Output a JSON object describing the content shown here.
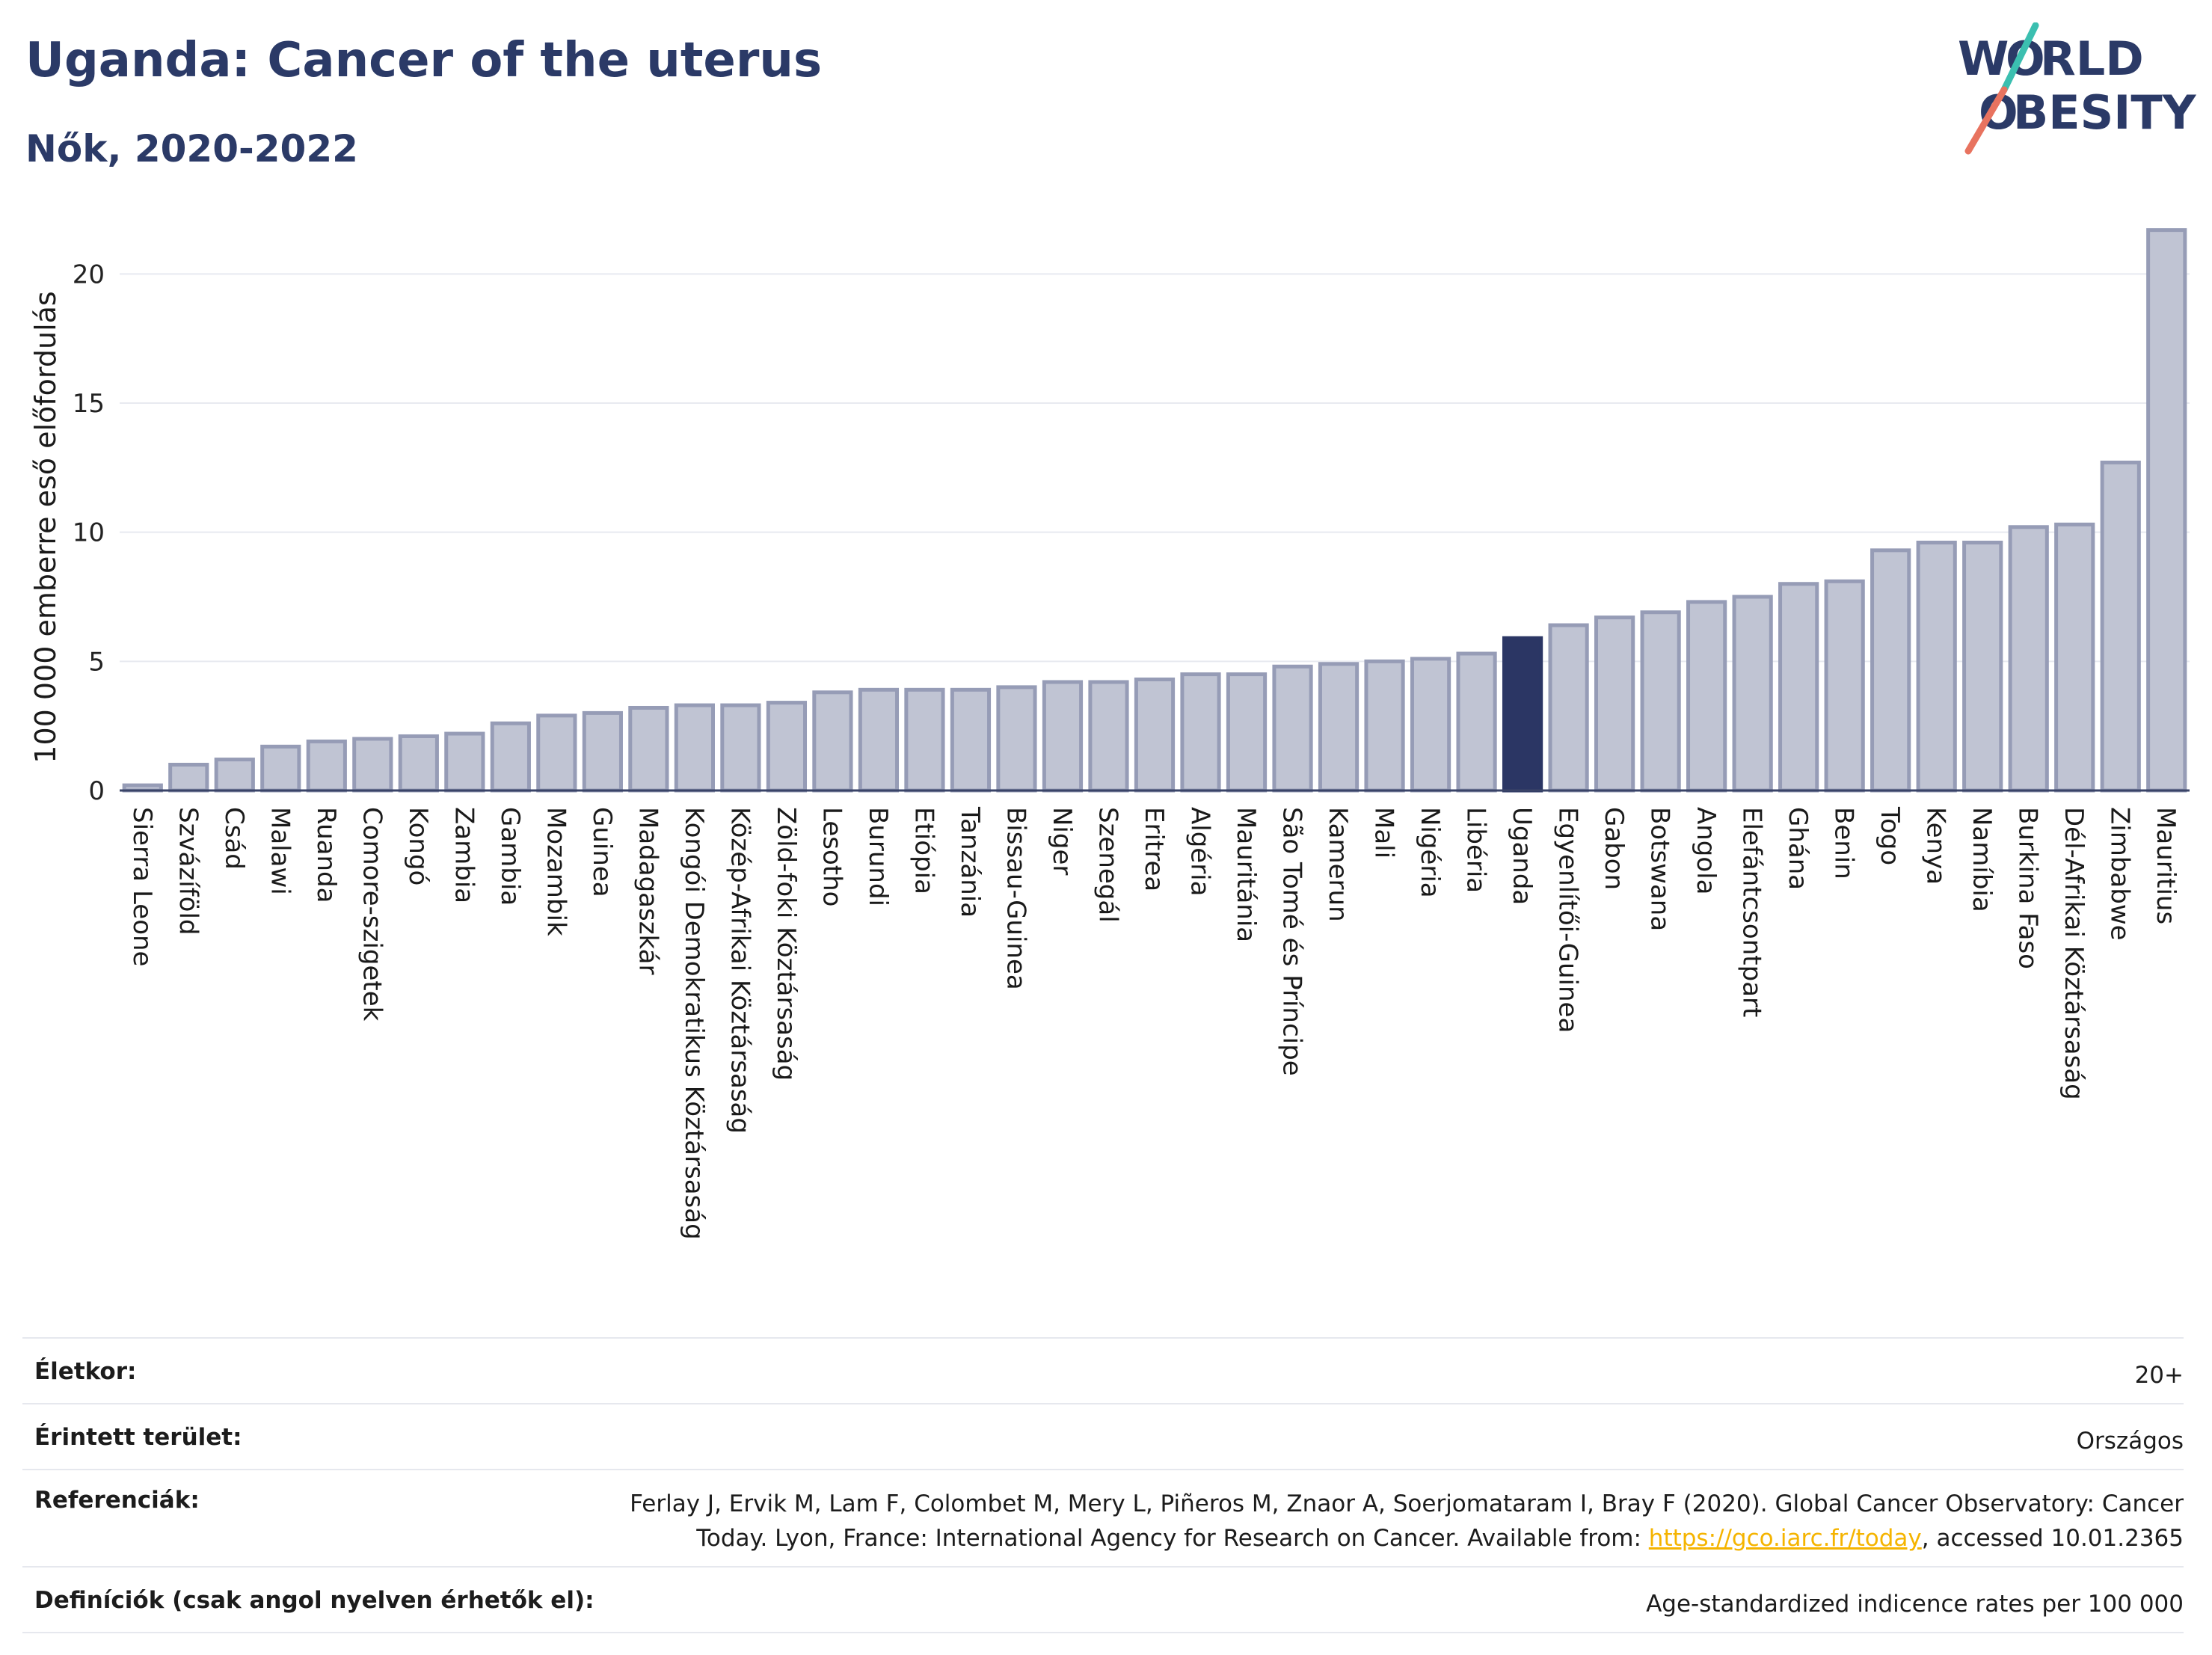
{
  "header": {
    "title": "Uganda: Cancer of the uterus",
    "subtitle": "Nők, 2020-2022",
    "logo_text": "WORLD OBESITY"
  },
  "colors": {
    "bar_fill": "#c0c4d3",
    "bar_stroke": "#969cb6",
    "highlight": "#2b3664",
    "title": "#2b3a67",
    "grid": "#e8eaf0",
    "link": "#f5b400",
    "logo_teal": "#3bbfb0",
    "logo_coral": "#e8735f"
  },
  "chart_data": {
    "type": "bar",
    "title": "Uganda: Cancer of the uterus",
    "subtitle": "Nők, 2020-2022",
    "xlabel": "",
    "ylabel": "100 000 emberre eső előfordulás",
    "ylim": [
      0,
      22.5
    ],
    "yticks": [
      0,
      5,
      10,
      15,
      20
    ],
    "grid": true,
    "highlight": "Uganda",
    "categories": [
      "Sierra Leone",
      "Szvázíföld",
      "Csád",
      "Malawi",
      "Ruanda",
      "Comore-szigetek",
      "Kongó",
      "Zambia",
      "Gambia",
      "Mozambik",
      "Guinea",
      "Madagaszkár",
      "Kongói Demokratikus Köztársaság",
      "Közép-Afrikai Köztársaság",
      "Zöld-foki Köztársaság",
      "Lesotho",
      "Burundi",
      "Etiópia",
      "Tanzánia",
      "Bissau-Guinea",
      "Niger",
      "Szenegál",
      "Eritrea",
      "Algéria",
      "Mauritánia",
      "São Tomé és Príncipe",
      "Kamerun",
      "Mali",
      "Nigéria",
      "Libéria",
      "Uganda",
      "Egyenlítői-Guinea",
      "Gabon",
      "Botswana",
      "Angola",
      "Elefántcsontpart",
      "Ghána",
      "Benin",
      "Togo",
      "Kenya",
      "Namíbia",
      "Burkina Faso",
      "Dél-Afrikai Köztársaság",
      "Zimbabwe",
      "Mauritius"
    ],
    "values": [
      0.2,
      1.0,
      1.2,
      1.7,
      1.9,
      2.0,
      2.1,
      2.2,
      2.6,
      2.9,
      3.0,
      3.2,
      3.3,
      3.3,
      3.4,
      3.8,
      3.9,
      3.9,
      3.9,
      4.0,
      4.2,
      4.2,
      4.3,
      4.5,
      4.5,
      4.8,
      4.9,
      5.0,
      5.1,
      5.3,
      5.9,
      6.4,
      6.7,
      6.9,
      7.3,
      7.5,
      8.0,
      8.1,
      9.3,
      9.6,
      9.6,
      10.2,
      10.3,
      12.7,
      21.7
    ]
  },
  "meta": {
    "age_label": "Életkor:",
    "age_value": "20+",
    "area_label": "Érintett terület:",
    "area_value": "Országos",
    "ref_label": "Referenciák:",
    "ref_line1": "Ferlay J, Ervik M, Lam F, Colombet M, Mery L, Piñeros M, Znaor A, Soerjomataram I, Bray F (2020). Global Cancer Observatory: Cancer",
    "ref_line2_before": "Today. Lyon, France: International Agency for Research on Cancer. Available from: ",
    "ref_link": "https://gco.iarc.fr/today",
    "ref_line2_after": ", accessed 10.01.2365",
    "def_label": "Definíciók (csak angol nyelven érhetők el):",
    "def_value": "Age-standardized indicence rates per 100 000"
  }
}
